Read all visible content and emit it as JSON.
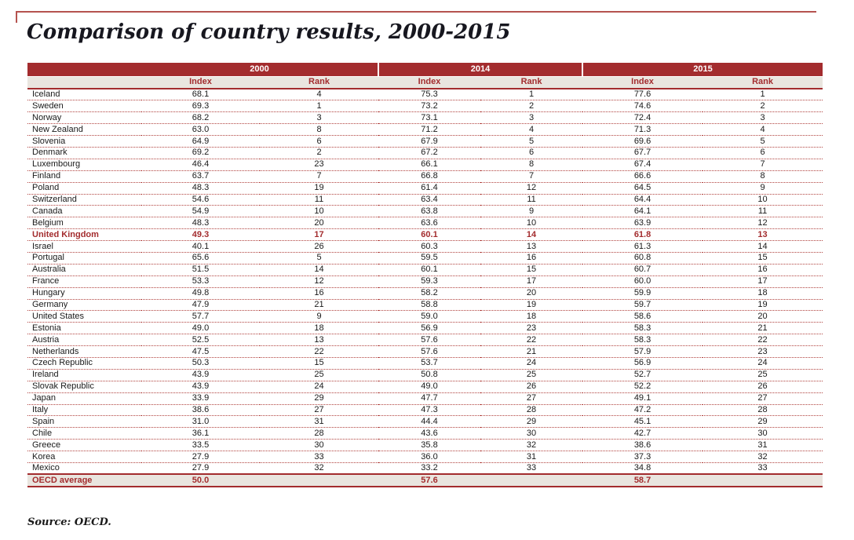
{
  "page": {
    "title": "Comparison of country results, 2000-2015",
    "source_note": "Source: OECD."
  },
  "colors": {
    "accent_red": "#a32c2e",
    "band_background": "#a32c2e",
    "subheader_background": "#e9e5df",
    "top_rule": "#b5534f",
    "body_text": "#1a1a1a"
  },
  "table": {
    "year_groups": [
      {
        "label": "2000"
      },
      {
        "label": "2014"
      },
      {
        "label": "2015"
      }
    ],
    "sub_headers": [
      "Index",
      "Rank",
      "Index",
      "Rank",
      "Index",
      "Rank"
    ],
    "rows": [
      {
        "country": "Iceland",
        "values": [
          "68.1",
          "4",
          "75.3",
          "1",
          "77.6",
          "1"
        ],
        "highlight": false
      },
      {
        "country": "Sweden",
        "values": [
          "69.3",
          "1",
          "73.2",
          "2",
          "74.6",
          "2"
        ],
        "highlight": false
      },
      {
        "country": "Norway",
        "values": [
          "68.2",
          "3",
          "73.1",
          "3",
          "72.4",
          "3"
        ],
        "highlight": false
      },
      {
        "country": "New Zealand",
        "values": [
          "63.0",
          "8",
          "71.2",
          "4",
          "71.3",
          "4"
        ],
        "highlight": false
      },
      {
        "country": "Slovenia",
        "values": [
          "64.9",
          "6",
          "67.9",
          "5",
          "69.6",
          "5"
        ],
        "highlight": false
      },
      {
        "country": "Denmark",
        "values": [
          "69.2",
          "2",
          "67.2",
          "6",
          "67.7",
          "6"
        ],
        "highlight": false
      },
      {
        "country": "Luxembourg",
        "values": [
          "46.4",
          "23",
          "66.1",
          "8",
          "67.4",
          "7"
        ],
        "highlight": false
      },
      {
        "country": "Finland",
        "values": [
          "63.7",
          "7",
          "66.8",
          "7",
          "66.6",
          "8"
        ],
        "highlight": false
      },
      {
        "country": "Poland",
        "values": [
          "48.3",
          "19",
          "61.4",
          "12",
          "64.5",
          "9"
        ],
        "highlight": false
      },
      {
        "country": "Switzerland",
        "values": [
          "54.6",
          "11",
          "63.4",
          "11",
          "64.4",
          "10"
        ],
        "highlight": false
      },
      {
        "country": "Canada",
        "values": [
          "54.9",
          "10",
          "63.8",
          "9",
          "64.1",
          "11"
        ],
        "highlight": false
      },
      {
        "country": "Belgium",
        "values": [
          "48.3",
          "20",
          "63.6",
          "10",
          "63.9",
          "12"
        ],
        "highlight": false
      },
      {
        "country": "United Kingdom",
        "values": [
          "49.3",
          "17",
          "60.1",
          "14",
          "61.8",
          "13"
        ],
        "highlight": true
      },
      {
        "country": "Israel",
        "values": [
          "40.1",
          "26",
          "60.3",
          "13",
          "61.3",
          "14"
        ],
        "highlight": false
      },
      {
        "country": "Portugal",
        "values": [
          "65.6",
          "5",
          "59.5",
          "16",
          "60.8",
          "15"
        ],
        "highlight": false
      },
      {
        "country": "Australia",
        "values": [
          "51.5",
          "14",
          "60.1",
          "15",
          "60.7",
          "16"
        ],
        "highlight": false
      },
      {
        "country": "France",
        "values": [
          "53.3",
          "12",
          "59.3",
          "17",
          "60.0",
          "17"
        ],
        "highlight": false
      },
      {
        "country": "Hungary",
        "values": [
          "49.8",
          "16",
          "58.2",
          "20",
          "59.9",
          "18"
        ],
        "highlight": false
      },
      {
        "country": "Germany",
        "values": [
          "47.9",
          "21",
          "58.8",
          "19",
          "59.7",
          "19"
        ],
        "highlight": false
      },
      {
        "country": "United States",
        "values": [
          "57.7",
          "9",
          "59.0",
          "18",
          "58.6",
          "20"
        ],
        "highlight": false
      },
      {
        "country": "Estonia",
        "values": [
          "49.0",
          "18",
          "56.9",
          "23",
          "58.3",
          "21"
        ],
        "highlight": false
      },
      {
        "country": "Austria",
        "values": [
          "52.5",
          "13",
          "57.6",
          "22",
          "58.3",
          "22"
        ],
        "highlight": false
      },
      {
        "country": "Netherlands",
        "values": [
          "47.5",
          "22",
          "57.6",
          "21",
          "57.9",
          "23"
        ],
        "highlight": false
      },
      {
        "country": "Czech Republic",
        "values": [
          "50.3",
          "15",
          "53.7",
          "24",
          "56.9",
          "24"
        ],
        "highlight": false
      },
      {
        "country": "Ireland",
        "values": [
          "43.9",
          "25",
          "50.8",
          "25",
          "52.7",
          "25"
        ],
        "highlight": false
      },
      {
        "country": "Slovak Republic",
        "values": [
          "43.9",
          "24",
          "49.0",
          "26",
          "52.2",
          "26"
        ],
        "highlight": false
      },
      {
        "country": "Japan",
        "values": [
          "33.9",
          "29",
          "47.7",
          "27",
          "49.1",
          "27"
        ],
        "highlight": false
      },
      {
        "country": "Italy",
        "values": [
          "38.6",
          "27",
          "47.3",
          "28",
          "47.2",
          "28"
        ],
        "highlight": false
      },
      {
        "country": "Spain",
        "values": [
          "31.0",
          "31",
          "44.4",
          "29",
          "45.1",
          "29"
        ],
        "highlight": false
      },
      {
        "country": "Chile",
        "values": [
          "36.1",
          "28",
          "43.6",
          "30",
          "42.7",
          "30"
        ],
        "highlight": false
      },
      {
        "country": "Greece",
        "values": [
          "33.5",
          "30",
          "35.8",
          "32",
          "38.6",
          "31"
        ],
        "highlight": false
      },
      {
        "country": "Korea",
        "values": [
          "27.9",
          "33",
          "36.0",
          "31",
          "37.3",
          "32"
        ],
        "highlight": false
      },
      {
        "country": "Mexico",
        "values": [
          "27.9",
          "32",
          "33.2",
          "33",
          "34.8",
          "33"
        ],
        "highlight": false
      }
    ],
    "footer_row": {
      "label": "OECD average",
      "values": [
        "50.0",
        "",
        "57.6",
        "",
        "58.7",
        ""
      ]
    }
  }
}
